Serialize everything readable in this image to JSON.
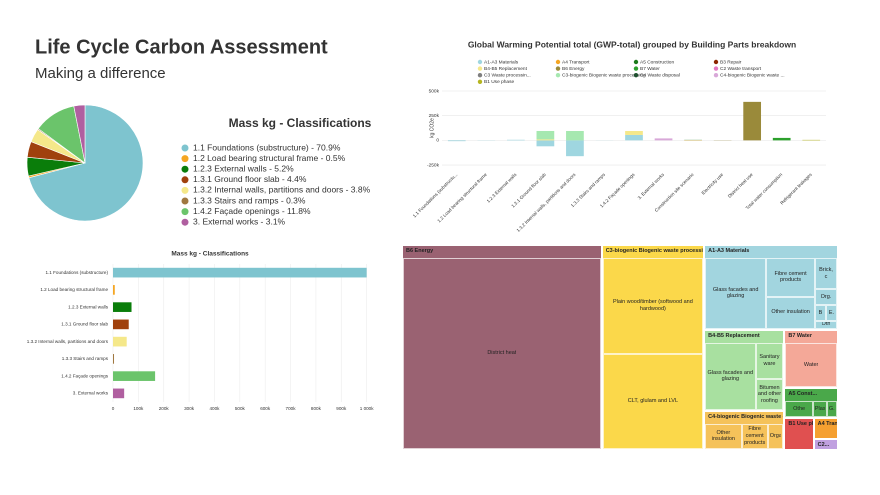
{
  "header": {
    "title": "Life Cycle Carbon Assessment",
    "subtitle": "Making a difference"
  },
  "chart_data": [
    {
      "type": "pie",
      "title": "Mass kg - Classifications",
      "categories": [
        "1.1 Foundations (substructure) - 70.9%",
        "1.2 Load bearing structural frame - 0.5%",
        "1.2.3 External walls - 5.2%",
        "1.3.1 Ground floor slab - 4.4%",
        "1.3.2 Internal walls, partitions and doors - 3.8%",
        "1.3.3 Stairs and ramps - 0.3%",
        "1.4.2 Façade openings - 11.8%",
        "3. External works - 3.1%"
      ],
      "values": [
        70.9,
        0.5,
        5.2,
        4.4,
        3.8,
        0.3,
        11.8,
        3.1
      ],
      "colors": [
        "#7ec4cf",
        "#f5a623",
        "#0a7d0a",
        "#a0410d",
        "#f5e88a",
        "#a07840",
        "#6bc46b",
        "#b05fa0"
      ]
    },
    {
      "type": "stacked_bar",
      "title": "Global Warming Potential total (GWP-total) grouped by Building Parts breakdown",
      "y_label": "kg CO2e",
      "categories": [
        "1.1 Foundations (substructu...",
        "1.2 Load bearing structural frame",
        "1.2.3 External walls",
        "1.3.1 Ground floor slab",
        "1.3.2 Internal walls, partitions and doors",
        "1.3.3 Stairs and ramps",
        "1.4.2 Façade openings",
        "3. External works",
        "Construction site scenario",
        "Electricity use",
        "District heat use",
        "Total water consumption",
        "Refrigerant leakages"
      ],
      "ylim": [
        -300000,
        500000
      ],
      "yticks": [
        {
          "value": 500000,
          "label": "500k"
        },
        {
          "value": 250000,
          "label": "250k"
        },
        0,
        {
          "value": -250000,
          "label": "-250k"
        }
      ],
      "grid": true,
      "series": [
        {
          "name": "A1-A3 Materials",
          "color": "#9fd6e0",
          "values": [
            -8000,
            2000,
            6000,
            -60000,
            -160000,
            1000,
            55000,
            0,
            0,
            0,
            0,
            0,
            0
          ]
        },
        {
          "name": "A4 Transport",
          "color": "#f5a623",
          "values": [
            0,
            0,
            0,
            0,
            0,
            0,
            0,
            0,
            3000,
            0,
            0,
            0,
            0
          ]
        },
        {
          "name": "A5 Construction",
          "color": "#1a7a1a",
          "values": [
            0,
            0,
            0,
            0,
            0,
            0,
            0,
            0,
            2000,
            0,
            0,
            0,
            0
          ]
        },
        {
          "name": "B3 Repair",
          "color": "#8b2500",
          "values": [
            0,
            0,
            0,
            0,
            0,
            0,
            0,
            0,
            0,
            0,
            0,
            0,
            0
          ]
        },
        {
          "name": "B4-B5 Replacement",
          "color": "#f5e88a",
          "values": [
            0,
            0,
            0,
            10000,
            0,
            0,
            40000,
            0,
            0,
            0,
            0,
            0,
            0
          ]
        },
        {
          "name": "B6 Energy",
          "color": "#9a8a3a",
          "values": [
            0,
            0,
            0,
            0,
            0,
            0,
            0,
            0,
            0,
            2000,
            390000,
            0,
            0
          ]
        },
        {
          "name": "B7 Water",
          "color": "#2ca02c",
          "values": [
            0,
            0,
            0,
            0,
            0,
            0,
            0,
            0,
            0,
            0,
            0,
            25000,
            0
          ]
        },
        {
          "name": "C2 Waste transport",
          "color": "#e377c2",
          "values": [
            0,
            0,
            0,
            0,
            0,
            0,
            0,
            0,
            0,
            0,
            0,
            0,
            0
          ]
        },
        {
          "name": "C3 Waste processin...",
          "color": "#7f7f7f",
          "values": [
            0,
            0,
            0,
            0,
            0,
            0,
            0,
            0,
            0,
            0,
            0,
            0,
            0
          ]
        },
        {
          "name": "C3-biogenic Biogenic waste processing",
          "color": "#a6e8b0",
          "values": [
            0,
            0,
            0,
            85000,
            95000,
            0,
            0,
            0,
            0,
            0,
            0,
            0,
            0
          ]
        },
        {
          "name": "C4 Waste disposal",
          "color": "#1f4f2f",
          "values": [
            0,
            0,
            0,
            0,
            0,
            0,
            0,
            0,
            0,
            0,
            0,
            0,
            0
          ]
        },
        {
          "name": "C4-biogenic Biogenic waste ...",
          "color": "#d8a8d8",
          "values": [
            0,
            0,
            0,
            0,
            0,
            0,
            0,
            20000,
            0,
            0,
            0,
            0,
            0
          ]
        },
        {
          "name": "B1 Use phase",
          "color": "#b5b520",
          "values": [
            0,
            0,
            0,
            0,
            0,
            0,
            0,
            0,
            0,
            0,
            0,
            0,
            5000
          ]
        }
      ]
    },
    {
      "type": "hbar",
      "title": "Mass kg - Classifications",
      "categories": [
        "1.1 Foundations (substructure)",
        "1.2 Load bearing structural frame",
        "1.2.3 External walls",
        "1.3.1 Ground floor slab",
        "1.3.2 Internal walls, partitions and doors",
        "1.3.3 Stairs and ramps",
        "1.4.2 Façade openings",
        "3. External works"
      ],
      "values": [
        1000000,
        7000,
        73000,
        62000,
        54000,
        4000,
        166000,
        44000
      ],
      "colors": [
        "#7ec4cf",
        "#f5a623",
        "#0a7d0a",
        "#a0410d",
        "#f5e88a",
        "#a07840",
        "#6bc46b",
        "#b05fa0"
      ],
      "xlim": [
        0,
        1100000
      ],
      "xticks": [
        0,
        {
          "value": 100000,
          "label": "100k"
        },
        {
          "value": 200000,
          "label": "200k"
        },
        {
          "value": 300000,
          "label": "300k"
        },
        {
          "value": 400000,
          "label": "400k"
        },
        {
          "value": 500000,
          "label": "500k"
        },
        {
          "value": 600000,
          "label": "600k"
        },
        {
          "value": 700000,
          "label": "700k"
        },
        {
          "value": 800000,
          "label": "800k"
        },
        {
          "value": 900000,
          "label": "900k"
        },
        {
          "value": 1000000,
          "label": "1 000k"
        }
      ],
      "grid": true
    },
    {
      "type": "treemap",
      "nodes": [
        {
          "label": "B6 Energy",
          "color": "#9a6272",
          "children": [
            {
              "label": "District heat",
              "value": 390000
            }
          ]
        },
        {
          "label": "C3-biogenic Biogenic waste processing",
          "color": "#fbd84a",
          "children": [
            {
              "label": "Plain wood/timber (softwood and hardwood)",
              "value": 100000
            },
            {
              "label": "CLT, glulam and LVL",
              "value": 100000
            }
          ]
        },
        {
          "label": "A1-A3 Materials",
          "color": "#a2d5df",
          "children": [
            {
              "label": "Glass facades and glazing",
              "value": 50000
            },
            {
              "label": "Fibre cement products",
              "value": 22000
            },
            {
              "label": "Other insulation",
              "value": 18000
            },
            {
              "label": "Brick, c",
              "value": 8000
            },
            {
              "label": "Org.",
              "value": 4000
            },
            {
              "label": "B",
              "value": 2000
            },
            {
              "label": "E.",
              "value": 2000
            },
            {
              "label": "Oth",
              "value": 2000
            }
          ]
        },
        {
          "label": "B4-B5 Replacement",
          "color": "#a8e0a0",
          "children": [
            {
              "label": "Glass facades and glazing",
              "value": 40000
            },
            {
              "label": "Sanitary ware",
              "value": 12000
            },
            {
              "label": "Bitumen and other roofing",
              "value": 10000
            }
          ]
        },
        {
          "label": "C4-biogenic Biogenic waste disposal",
          "color": "#f5c25a",
          "children": [
            {
              "label": "Other insulation",
              "value": 14000
            },
            {
              "label": "Fibre cement products",
              "value": 10000
            },
            {
              "label": "Organ",
              "value": 6000
            }
          ]
        },
        {
          "label": "B7 Water",
          "color": "#f4a898",
          "children": [
            {
              "label": "Water",
              "value": 30000
            }
          ]
        },
        {
          "label": "A5 Const...",
          "color": "#4aa84a",
          "children": [
            {
              "label": "Othe",
              "value": 8000
            },
            {
              "label": "Plas",
              "value": 4000
            },
            {
              "label": "G.",
              "value": 3000
            }
          ]
        },
        {
          "label": "B1 Use phase",
          "color": "#e05050",
          "value": 9000
        },
        {
          "label": "A4 Transport",
          "color": "#f5a030",
          "value": 5000
        },
        {
          "label": "C2...",
          "color": "#c0a0e0",
          "value": 2500
        }
      ]
    }
  ]
}
